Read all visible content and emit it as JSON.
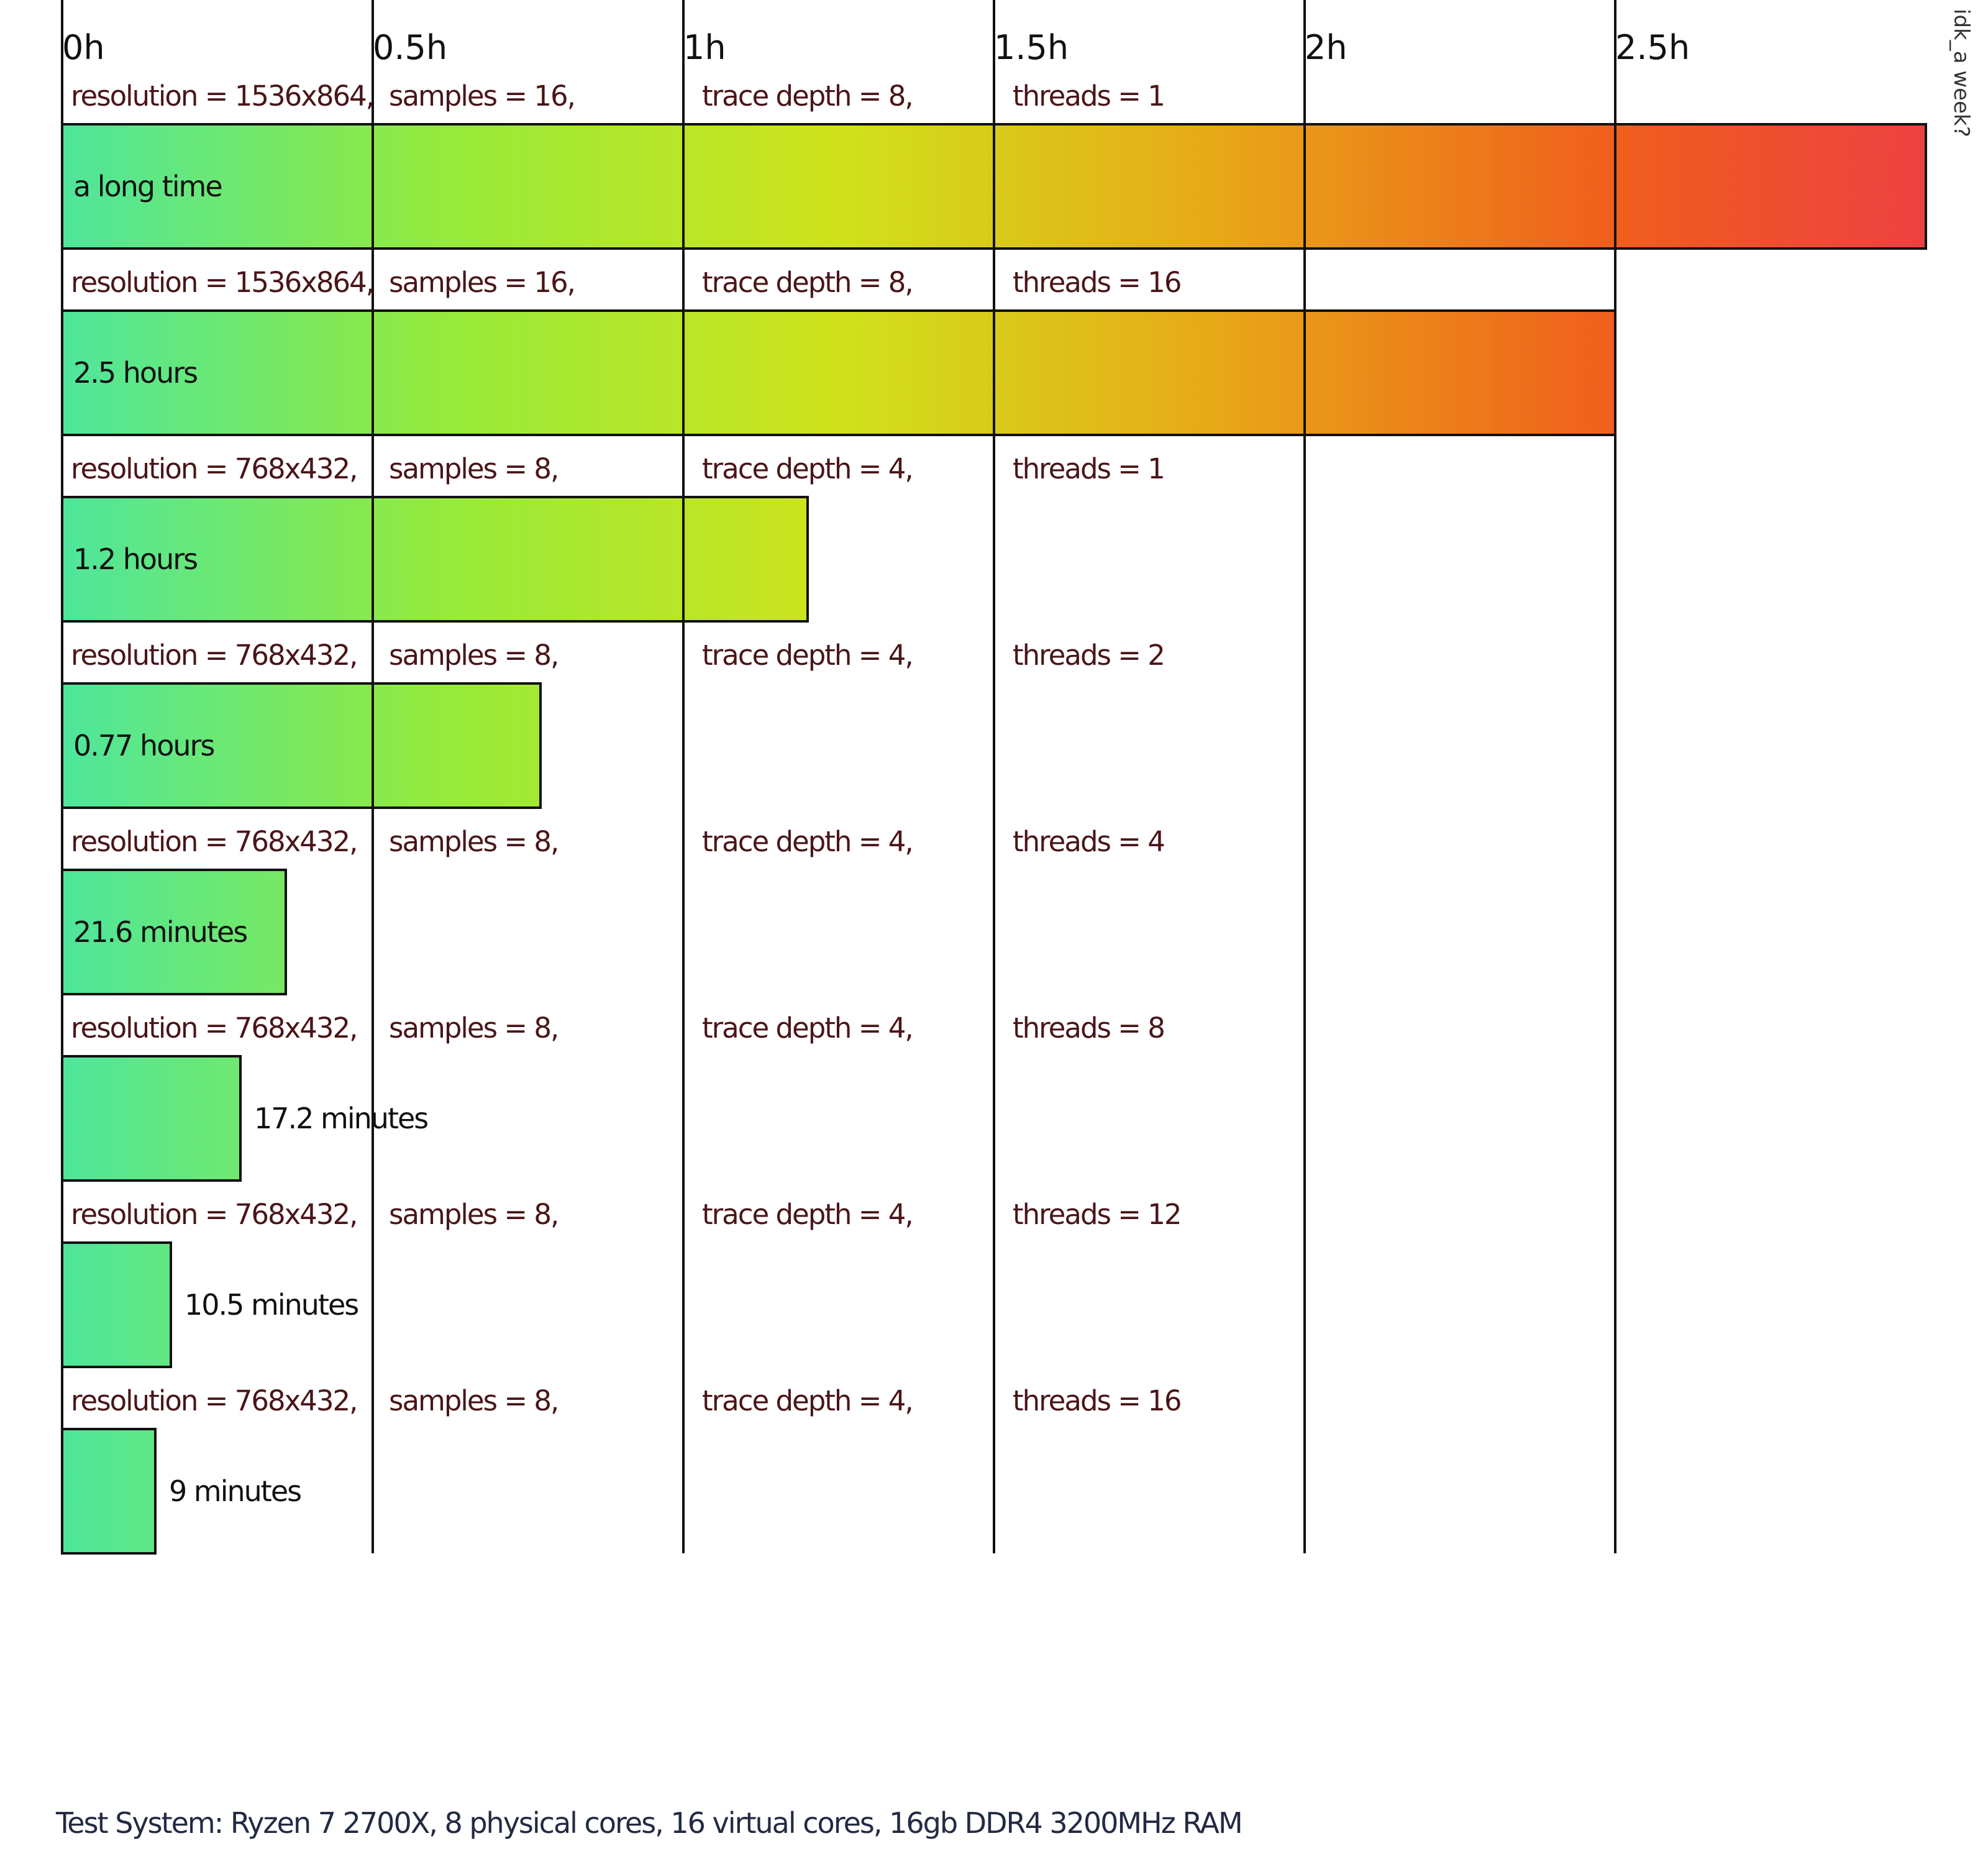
{
  "chart_data": {
    "type": "bar",
    "orientation": "horizontal",
    "x_unit": "hours",
    "xlim": [
      0,
      3.0
    ],
    "x_ticks": [
      {
        "value": 0,
        "label": "0h"
      },
      {
        "value": 0.5,
        "label": "0.5h"
      },
      {
        "value": 1,
        "label": "1h"
      },
      {
        "value": 1.5,
        "label": "1.5h"
      },
      {
        "value": 2,
        "label": "2h"
      },
      {
        "value": 2.5,
        "label": "2.5h"
      }
    ],
    "overflow_label": "idk_a week?",
    "grid": "vertical",
    "rows": [
      {
        "resolution": "resolution = 1536x864,",
        "samples": "samples = 16,",
        "trace_depth": "trace depth = 8,",
        "threads": "threads = 1",
        "value_hours": 3.0,
        "value_label": "a long time",
        "overflow": true
      },
      {
        "resolution": "resolution = 1536x864,",
        "samples": "samples = 16,",
        "trace_depth": "trace depth = 8,",
        "threads": "threads = 16",
        "value_hours": 2.5,
        "value_label": "2.5 hours"
      },
      {
        "resolution": "resolution = 768x432,",
        "samples": "samples = 8,",
        "trace_depth": "trace depth = 4,",
        "threads": "threads = 1",
        "value_hours": 1.2,
        "value_label": "1.2 hours"
      },
      {
        "resolution": "resolution = 768x432,",
        "samples": "samples = 8,",
        "trace_depth": "trace depth = 4,",
        "threads": "threads = 2",
        "value_hours": 0.77,
        "value_label": "0.77 hours"
      },
      {
        "resolution": "resolution = 768x432,",
        "samples": "samples = 8,",
        "trace_depth": "trace depth = 4,",
        "threads": "threads = 4",
        "value_hours": 0.36,
        "value_label": "21.6 minutes"
      },
      {
        "resolution": "resolution = 768x432,",
        "samples": "samples = 8,",
        "trace_depth": "trace depth = 4,",
        "threads": "threads = 8",
        "value_hours": 0.287,
        "value_label": "17.2 minutes"
      },
      {
        "resolution": "resolution = 768x432,",
        "samples": "samples = 8,",
        "trace_depth": "trace depth = 4,",
        "threads": "threads = 12",
        "value_hours": 0.175,
        "value_label": "10.5 minutes"
      },
      {
        "resolution": "resolution = 768x432,",
        "samples": "samples = 8,",
        "trace_depth": "trace depth = 4,",
        "threads": "threads = 16",
        "value_hours": 0.15,
        "value_label": "9 minutes"
      }
    ],
    "footer": "Test System: Ryzen 7 2700X, 8 physical cores, 16 virtual cores, 16gb DDR4 3200MHz RAM",
    "colors": {
      "gradient": [
        "#4ee69c",
        "#96ea3a",
        "#cfe31c",
        "#e8a818",
        "#f0601c",
        "#ec3a48"
      ],
      "grid": "#111111",
      "param_text": "#4a1518",
      "value_text": "#111111"
    }
  }
}
